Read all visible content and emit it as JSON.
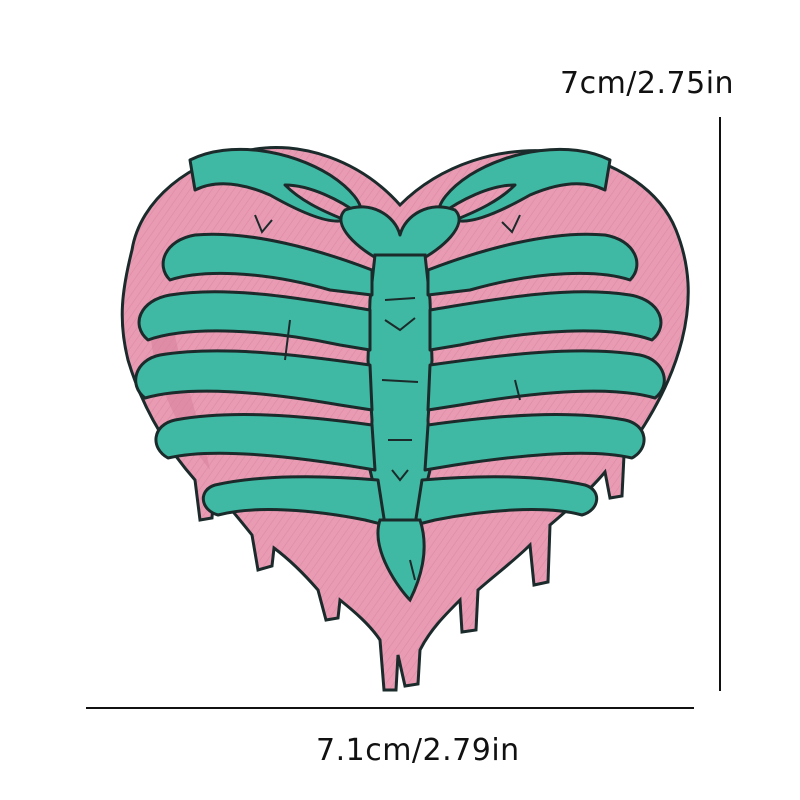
{
  "dimensions": {
    "height_label": "7cm/2.75in",
    "width_label": "7.1cm/2.79in"
  },
  "patch": {
    "subject": "embroidered heart-shaped ribcage patch with dripping edges",
    "colors": {
      "fabric_pink": "#e99bb3",
      "fabric_pink_shadow": "#d57f9b",
      "ribs_teal": "#3fb9a3",
      "ribs_teal_light": "#6fd3bf",
      "outline": "#1b2a2a"
    }
  }
}
